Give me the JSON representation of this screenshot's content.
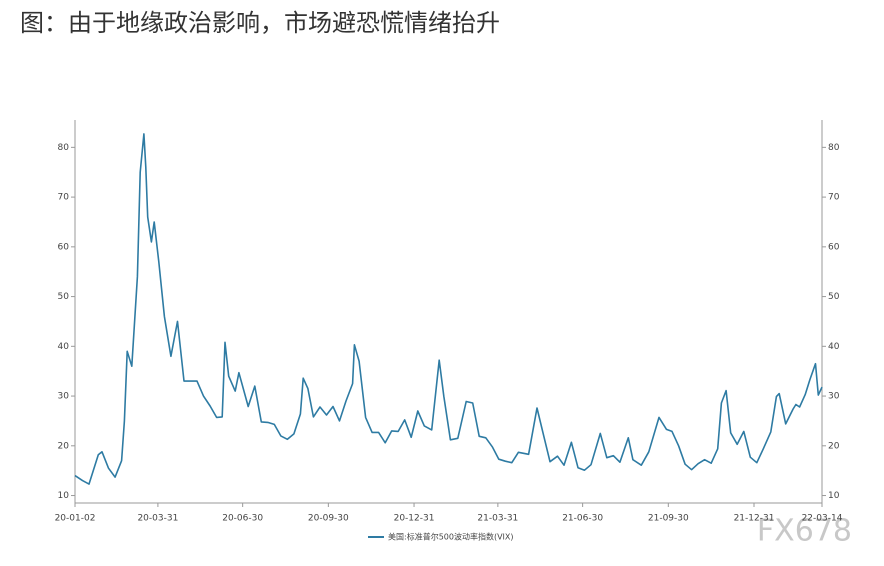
{
  "chart_data": {
    "type": "line",
    "title": "图：由于地缘政治影响，市场避恐慌情绪抬升",
    "watermark": "FX678",
    "x": [
      "20-01-02",
      "20-01-10",
      "20-01-17",
      "20-01-27",
      "20-01-31",
      "20-02-07",
      "20-02-14",
      "20-02-21",
      "20-02-24",
      "20-02-27",
      "20-03-03",
      "20-03-09",
      "20-03-12",
      "20-03-16",
      "20-03-18",
      "20-03-20",
      "20-03-24",
      "20-03-27",
      "20-04-01",
      "20-04-07",
      "20-04-14",
      "20-04-21",
      "20-04-28",
      "20-05-05",
      "20-05-12",
      "20-05-19",
      "20-05-26",
      "20-06-02",
      "20-06-08",
      "20-06-11",
      "20-06-15",
      "20-06-22",
      "20-06-26",
      "20-07-06",
      "20-07-13",
      "20-07-20",
      "20-07-27",
      "20-08-03",
      "20-08-10",
      "20-08-17",
      "20-08-24",
      "20-08-31",
      "20-09-03",
      "20-09-08",
      "20-09-14",
      "20-09-21",
      "20-09-28",
      "20-10-05",
      "20-10-12",
      "20-10-19",
      "20-10-26",
      "20-10-28",
      "20-11-02",
      "20-11-09",
      "20-11-16",
      "20-11-23",
      "20-11-30",
      "20-12-07",
      "20-12-14",
      "20-12-21",
      "20-12-28",
      "21-01-04",
      "21-01-11",
      "21-01-19",
      "21-01-27",
      "21-02-01",
      "21-02-08",
      "21-02-16",
      "21-02-25",
      "21-03-04",
      "21-03-11",
      "21-03-18",
      "21-03-25",
      "21-04-01",
      "21-04-08",
      "21-04-15",
      "21-04-22",
      "21-05-03",
      "21-05-12",
      "21-05-19",
      "21-05-26",
      "21-06-03",
      "21-06-10",
      "21-06-18",
      "21-06-25",
      "21-07-02",
      "21-07-09",
      "21-07-19",
      "21-07-26",
      "21-08-02",
      "21-08-09",
      "21-08-18",
      "21-08-23",
      "21-09-01",
      "21-09-09",
      "21-09-20",
      "21-09-28",
      "21-10-04",
      "21-10-11",
      "21-10-18",
      "21-10-25",
      "21-11-01",
      "21-11-08",
      "21-11-15",
      "21-11-22",
      "21-11-26",
      "21-12-01",
      "21-12-06",
      "21-12-13",
      "21-12-20",
      "21-12-27",
      "22-01-03",
      "22-01-10",
      "22-01-18",
      "22-01-24",
      "22-01-27",
      "22-02-03",
      "22-02-11",
      "22-02-14",
      "22-02-18",
      "22-02-24",
      "22-03-01",
      "22-03-07",
      "22-03-10",
      "22-03-14"
    ],
    "series": [
      {
        "name": "美国:标准普尔500波动率指数(VIX)",
        "color": "#2e7ba3",
        "values": [
          14,
          13,
          12.3,
          18.2,
          18.8,
          15.5,
          13.7,
          17,
          25,
          39,
          36,
          54,
          75,
          82.7,
          76,
          66,
          61,
          65,
          57,
          46,
          38,
          45,
          33,
          33,
          33,
          30,
          28,
          25.7,
          25.8,
          40.8,
          34,
          31,
          34.7,
          27.9,
          32,
          24.8,
          24.7,
          24.3,
          22,
          21.3,
          22.4,
          26.4,
          33.6,
          31.5,
          25.8,
          27.8,
          26.2,
          27.9,
          25,
          29,
          32.5,
          40.3,
          37,
          25.7,
          22.7,
          22.7,
          20.6,
          23,
          22.9,
          25.2,
          21.7,
          27,
          24,
          23.2,
          37.2,
          30,
          21.2,
          21.5,
          28.9,
          28.6,
          21.9,
          21.6,
          19.8,
          17.3,
          16.9,
          16.6,
          18.7,
          18.3,
          27.6,
          22.2,
          16.8,
          17.9,
          16.1,
          20.7,
          15.6,
          15.1,
          16.2,
          22.5,
          17.6,
          18,
          16.7,
          21.6,
          17.2,
          16.1,
          18.8,
          25.7,
          23.3,
          22.9,
          20,
          16.3,
          15.2,
          16.4,
          17.2,
          16.5,
          19.4,
          28.6,
          31.1,
          22.6,
          20.3,
          22.9,
          17.7,
          16.6,
          19.4,
          22.8,
          29.9,
          30.5,
          24.4,
          27.4,
          28.3,
          27.8,
          30.3,
          33.3,
          36.5,
          30.2,
          31.8
        ]
      }
    ],
    "xlim": [
      "20-01-02",
      "22-03-14"
    ],
    "xticks": [
      "20-01-02",
      "20-03-31",
      "20-06-30",
      "20-09-30",
      "20-12-31",
      "21-03-31",
      "21-06-30",
      "21-09-30",
      "21-12-31",
      "22-03-14"
    ],
    "ylim": [
      8.5,
      85.5
    ],
    "yticks": [
      10,
      20,
      30,
      40,
      50,
      60,
      70,
      80
    ],
    "y2lim": [
      8.5,
      85.5
    ],
    "y2ticks": [
      10,
      20,
      30,
      40,
      50,
      60,
      70,
      80
    ]
  }
}
